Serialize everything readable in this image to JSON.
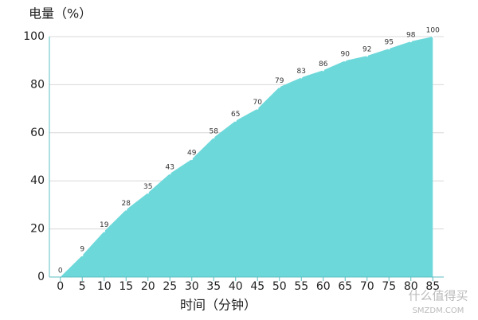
{
  "chart_data": {
    "type": "area",
    "y_axis_title": "电量（%）",
    "x_axis_title": "时间（分钟）",
    "x": [
      0,
      5,
      10,
      15,
      20,
      25,
      30,
      35,
      40,
      45,
      50,
      55,
      60,
      65,
      70,
      75,
      80,
      85
    ],
    "values": [
      0,
      9,
      19,
      28,
      35,
      43,
      49,
      58,
      65,
      70,
      79,
      83,
      86,
      90,
      92,
      95,
      98,
      100
    ],
    "color": "#6dd8da",
    "xlim": [
      -2.5,
      87.5
    ],
    "xticks": [
      0,
      5,
      10,
      15,
      20,
      25,
      30,
      35,
      40,
      45,
      50,
      55,
      60,
      65,
      70,
      75,
      80,
      85
    ],
    "ylim": [
      0,
      100
    ],
    "yticks": [
      0,
      20,
      40,
      60,
      80,
      100
    ],
    "grid": true,
    "watermark": [
      "什么值得买",
      "SMZDM.COM"
    ]
  }
}
